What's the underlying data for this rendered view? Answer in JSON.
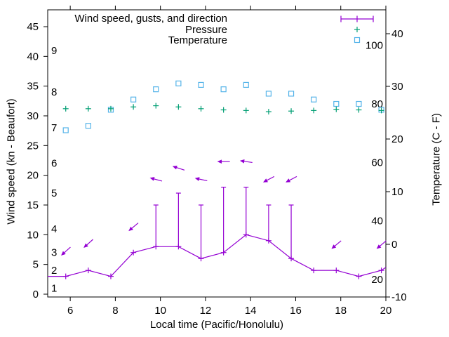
{
  "chart_data": {
    "type": "line",
    "subtype": "meteogram with error-bar gusts, direction arrows and scatter series",
    "title": "",
    "xlabel": "Local time (Pacific/Honolulu)",
    "ylabel_left": "Wind speed (kn - Beaufort)",
    "ylabel_right": "Temperature (C - F)",
    "x_range": [
      5,
      20
    ],
    "x_ticks": [
      6,
      8,
      10,
      12,
      14,
      16,
      18,
      20
    ],
    "y_left_range_kn": [
      -0.5,
      47.8
    ],
    "y_left_ticks_kn": [
      0,
      5,
      10,
      15,
      20,
      25,
      30,
      35,
      40,
      45
    ],
    "beaufort_inner_labels": [
      {
        "label": "1",
        "kn": 1
      },
      {
        "label": "2",
        "kn": 4
      },
      {
        "label": "3",
        "kn": 7
      },
      {
        "label": "4",
        "kn": 11
      },
      {
        "label": "5",
        "kn": 17
      },
      {
        "label": "6",
        "kn": 22
      },
      {
        "label": "7",
        "kn": 28
      },
      {
        "label": "8",
        "kn": 34
      },
      {
        "label": "9",
        "kn": 41
      }
    ],
    "y_right_range_c": [
      -10,
      44.5
    ],
    "y_right_ticks_c": [
      -10,
      0,
      10,
      20,
      30,
      40
    ],
    "fahrenheit_inner_labels": [
      20,
      40,
      60,
      80,
      100
    ],
    "legend": [
      {
        "label": "Wind speed, gusts, and direction",
        "series": "wind",
        "marker": "errorbar-line"
      },
      {
        "label": "Pressure",
        "series": "pressure",
        "marker": "plus"
      },
      {
        "label": "Temperature",
        "series": "temperature",
        "marker": "open-square"
      }
    ],
    "x": [
      5.8,
      6.8,
      7.8,
      8.8,
      9.8,
      10.8,
      11.8,
      12.8,
      13.8,
      14.8,
      15.8,
      16.8,
      17.8,
      18.8,
      19.8
    ],
    "series": [
      {
        "name": "wind_speed_kn",
        "values": [
          3,
          4,
          3,
          7,
          8,
          8,
          6,
          7,
          10,
          9,
          6,
          4,
          4,
          3,
          4
        ],
        "line_start": {
          "t": 5.0,
          "kn": 3
        },
        "line_end": {
          "t": 20.0,
          "kn": 4.5
        }
      },
      {
        "name": "wind_gust_kn",
        "values": [
          null,
          null,
          null,
          null,
          15,
          17,
          15,
          18,
          18,
          15,
          15,
          null,
          null,
          null,
          null
        ]
      },
      {
        "name": "pressure_plotted_on_left_axis",
        "values": [
          31.2,
          31.2,
          31.2,
          31.5,
          31.7,
          31.5,
          31.2,
          31.0,
          30.9,
          30.7,
          30.8,
          30.9,
          31.1,
          31.0,
          30.9
        ]
      },
      {
        "name": "temperature_f",
        "values": [
          71,
          72.5,
          78,
          81.5,
          85,
          87,
          86.5,
          85,
          86.5,
          83.5,
          83.5,
          81.5,
          80,
          80,
          78
        ]
      }
    ],
    "wind_direction_arrows": [
      {
        "t": 5.8,
        "kn": 7.2,
        "rot_deg": 42,
        "from_compass_deg": 48
      },
      {
        "t": 6.8,
        "kn": 8.5,
        "rot_deg": 42,
        "from_compass_deg": 48
      },
      {
        "t": 8.8,
        "kn": 11.3,
        "rot_deg": 40,
        "from_compass_deg": 50
      },
      {
        "t": 9.8,
        "kn": 19.3,
        "rot_deg": -15,
        "from_compass_deg": 105
      },
      {
        "t": 10.8,
        "kn": 21.2,
        "rot_deg": -18,
        "from_compass_deg": 108
      },
      {
        "t": 11.8,
        "kn": 19.3,
        "rot_deg": -12,
        "from_compass_deg": 102
      },
      {
        "t": 12.8,
        "kn": 22.3,
        "rot_deg": 0,
        "from_compass_deg": 90
      },
      {
        "t": 13.8,
        "kn": 22.3,
        "rot_deg": -8,
        "from_compass_deg": 98
      },
      {
        "t": 14.8,
        "kn": 19.3,
        "rot_deg": 28,
        "from_compass_deg": 62
      },
      {
        "t": 15.8,
        "kn": 19.3,
        "rot_deg": 28,
        "from_compass_deg": 62
      },
      {
        "t": 17.8,
        "kn": 8.3,
        "rot_deg": 40,
        "from_compass_deg": 50
      },
      {
        "t": 19.8,
        "kn": 8.3,
        "rot_deg": 40,
        "from_compass_deg": 50
      }
    ],
    "grid": false,
    "legend_position": "top-right-inside",
    "tick_direction": "out",
    "colors": {
      "wind": "#9400d3",
      "pressure": "#009e73",
      "temperature": "#56b4e9",
      "axis": "#000000",
      "text": "#000000",
      "background": "#ffffff"
    }
  }
}
